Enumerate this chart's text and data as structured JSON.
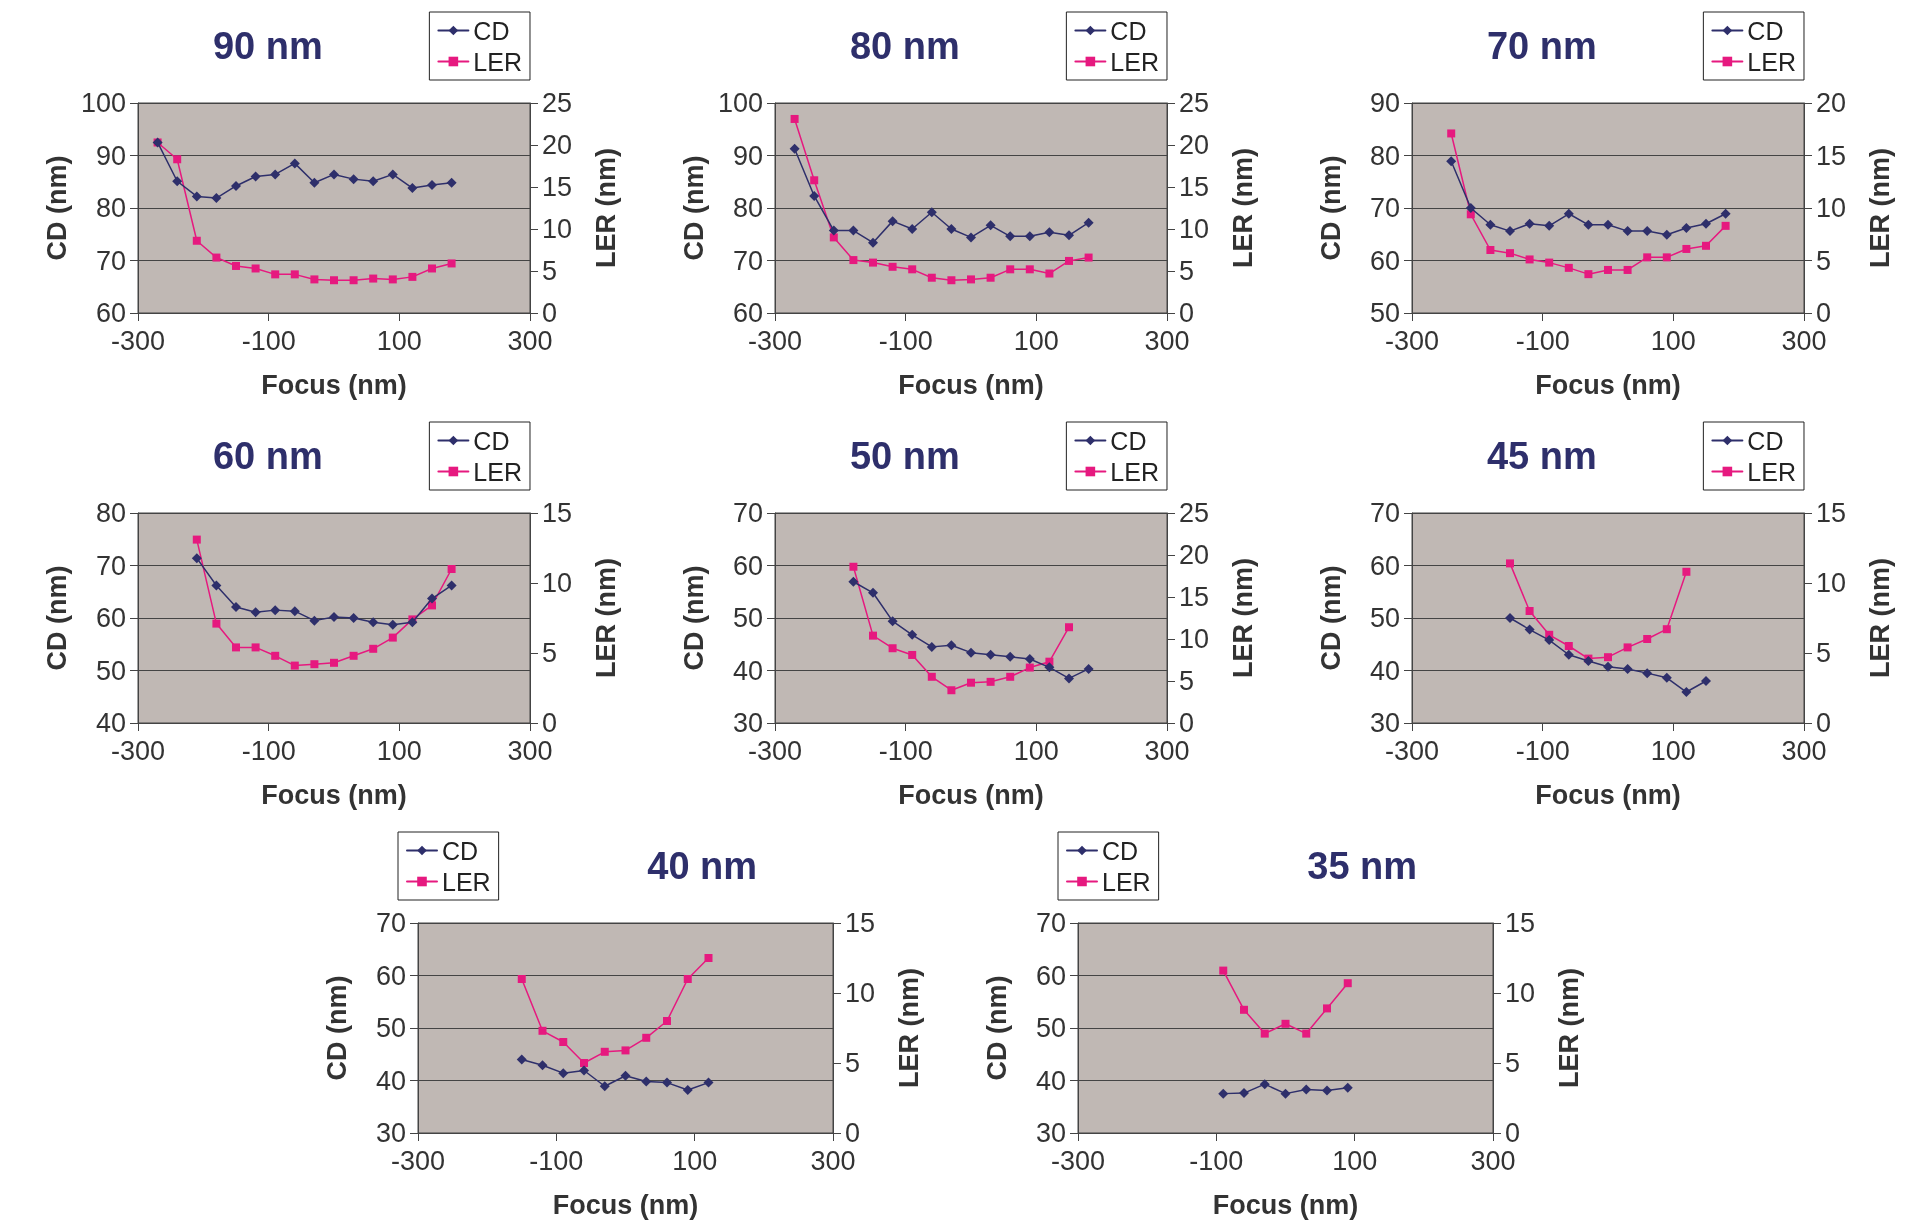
{
  "chart_data": [
    {
      "type": "line",
      "title": "90 nm",
      "xlabel": "Focus (nm)",
      "ylabel": "CD (nm)",
      "y2label": "LER (nm)",
      "x": [
        -270,
        -240,
        -210,
        -180,
        -150,
        -120,
        -90,
        -60,
        -30,
        0,
        30,
        60,
        90,
        120,
        150,
        180
      ],
      "xlim": [
        -300,
        300
      ],
      "xticks": [
        -300,
        -100,
        100,
        300
      ],
      "ylim": [
        60,
        100
      ],
      "yticks": [
        60,
        70,
        80,
        90,
        100
      ],
      "y2lim": [
        0,
        25
      ],
      "y2ticks": [
        0,
        5,
        10,
        15,
        20,
        25
      ],
      "grid": "y",
      "legend": "top right",
      "series": [
        {
          "name": "CD",
          "color": "#2e2f6b",
          "marker": "diamond",
          "values": [
            92.5,
            85.1,
            82.2,
            81.9,
            84.2,
            86.0,
            86.4,
            88.5,
            84.8,
            86.4,
            85.5,
            85.1,
            86.4,
            83.8,
            84.4,
            84.8
          ]
        },
        {
          "name": "LER",
          "color": "#e6197f",
          "marker": "square",
          "axis": "y2",
          "values": [
            20.3,
            18.3,
            8.6,
            6.6,
            5.6,
            5.3,
            4.6,
            4.6,
            4.0,
            3.9,
            3.9,
            4.1,
            4.0,
            4.3,
            5.3,
            5.9
          ]
        }
      ]
    },
    {
      "type": "line",
      "title": "80 nm",
      "xlabel": "Focus (nm)",
      "ylabel": "CD (nm)",
      "y2label": "LER (nm)",
      "x": [
        -270,
        -240,
        -210,
        -180,
        -150,
        -120,
        -90,
        -60,
        -30,
        0,
        30,
        60,
        90,
        120,
        150,
        180
      ],
      "xlim": [
        -300,
        300
      ],
      "xticks": [
        -300,
        -100,
        100,
        300
      ],
      "ylim": [
        60,
        100
      ],
      "yticks": [
        60,
        70,
        80,
        90,
        100
      ],
      "y2lim": [
        0,
        25
      ],
      "y2ticks": [
        0,
        5,
        10,
        15,
        20,
        25
      ],
      "grid": "y",
      "legend": "top right",
      "series": [
        {
          "name": "CD",
          "color": "#2e2f6b",
          "marker": "diamond",
          "values": [
            91.3,
            82.3,
            75.7,
            75.7,
            73.4,
            77.5,
            76.0,
            79.2,
            76.0,
            74.4,
            76.7,
            74.6,
            74.6,
            75.4,
            74.8,
            77.2
          ]
        },
        {
          "name": "LER",
          "color": "#e6197f",
          "marker": "square",
          "axis": "y2",
          "values": [
            23.1,
            15.8,
            9.0,
            6.3,
            6.0,
            5.5,
            5.2,
            4.2,
            3.9,
            4.0,
            4.2,
            5.2,
            5.2,
            4.7,
            6.2,
            6.6
          ]
        }
      ]
    },
    {
      "type": "line",
      "title": "70 nm",
      "xlabel": "Focus (nm)",
      "ylabel": "CD (nm)",
      "y2label": "LER (nm)",
      "x": [
        -240,
        -210,
        -180,
        -150,
        -120,
        -90,
        -60,
        -30,
        0,
        30,
        60,
        90,
        120,
        150,
        180
      ],
      "xlim": [
        -300,
        300
      ],
      "xticks": [
        -300,
        -100,
        100,
        300
      ],
      "ylim": [
        50,
        90
      ],
      "yticks": [
        50,
        60,
        70,
        80,
        90
      ],
      "y2lim": [
        0,
        20
      ],
      "y2ticks": [
        0,
        5,
        10,
        15,
        20
      ],
      "grid": "y",
      "legend": "top right",
      "series": [
        {
          "name": "CD",
          "color": "#2e2f6b",
          "marker": "diamond",
          "values": [
            78.9,
            70.0,
            66.8,
            65.6,
            67.0,
            66.6,
            68.9,
            66.8,
            66.8,
            65.6,
            65.6,
            64.9,
            66.2,
            67.0,
            68.9
          ]
        },
        {
          "name": "LER",
          "color": "#e6197f",
          "marker": "square",
          "axis": "y2",
          "values": [
            17.1,
            9.4,
            6.0,
            5.7,
            5.1,
            4.8,
            4.3,
            3.7,
            4.1,
            4.1,
            5.3,
            5.3,
            6.1,
            6.4,
            8.3
          ]
        }
      ]
    },
    {
      "type": "line",
      "title": "60 nm",
      "xlabel": "Focus (nm)",
      "ylabel": "CD (nm)",
      "y2label": "LER (nm)",
      "x": [
        -210,
        -180,
        -150,
        -120,
        -90,
        -60,
        -30,
        0,
        30,
        60,
        90,
        120,
        150,
        180
      ],
      "xlim": [
        -300,
        300
      ],
      "xticks": [
        -300,
        -100,
        100,
        300
      ],
      "ylim": [
        40,
        80
      ],
      "yticks": [
        40,
        50,
        60,
        70,
        80
      ],
      "y2lim": [
        0,
        15
      ],
      "y2ticks": [
        0,
        5,
        10,
        15
      ],
      "grid": "y",
      "legend": "top right",
      "series": [
        {
          "name": "CD",
          "color": "#2e2f6b",
          "marker": "diamond",
          "values": [
            71.4,
            66.2,
            62.1,
            61.1,
            61.5,
            61.3,
            59.5,
            60.2,
            60.0,
            59.2,
            58.7,
            59.2,
            63.7,
            66.2
          ]
        },
        {
          "name": "LER",
          "color": "#e6197f",
          "marker": "square",
          "axis": "y2",
          "values": [
            13.1,
            7.1,
            5.4,
            5.4,
            4.8,
            4.1,
            4.2,
            4.3,
            4.8,
            5.3,
            6.1,
            7.4,
            8.4,
            11.0
          ]
        }
      ]
    },
    {
      "type": "line",
      "title": "50 nm",
      "xlabel": "Focus (nm)",
      "ylabel": "CD (nm)",
      "y2label": "LER (nm)",
      "x": [
        -180,
        -150,
        -120,
        -90,
        -60,
        -30,
        0,
        30,
        60,
        90,
        120,
        150,
        180
      ],
      "xlim": [
        -300,
        300
      ],
      "xticks": [
        -300,
        -100,
        100,
        300
      ],
      "ylim": [
        30,
        70
      ],
      "yticks": [
        30,
        40,
        50,
        60,
        70
      ],
      "y2lim": [
        0,
        25
      ],
      "y2ticks": [
        0,
        5,
        10,
        15,
        20,
        25
      ],
      "grid": "y",
      "legend": "top right",
      "series": [
        {
          "name": "CD",
          "color": "#2e2f6b",
          "marker": "diamond",
          "values": [
            56.9,
            54.8,
            49.4,
            46.8,
            44.5,
            44.8,
            43.4,
            43.0,
            42.6,
            42.2,
            40.6,
            38.5,
            40.3
          ]
        },
        {
          "name": "LER",
          "color": "#e6197f",
          "marker": "square",
          "axis": "y2",
          "values": [
            18.6,
            10.4,
            8.9,
            8.1,
            5.5,
            3.9,
            4.8,
            4.9,
            5.5,
            6.6,
            7.3,
            11.4,
            null
          ]
        }
      ]
    },
    {
      "type": "line",
      "title": "45 nm",
      "xlabel": "Focus (nm)",
      "ylabel": "CD (nm)",
      "y2label": "LER (nm)",
      "x": [
        -150,
        -120,
        -90,
        -60,
        -30,
        0,
        30,
        60,
        90,
        120,
        150
      ],
      "xlim": [
        -300,
        300
      ],
      "xticks": [
        -300,
        -100,
        100,
        300
      ],
      "ylim": [
        30,
        70
      ],
      "yticks": [
        30,
        40,
        50,
        60,
        70
      ],
      "y2lim": [
        0,
        15
      ],
      "y2ticks": [
        0,
        5,
        10,
        15
      ],
      "grid": "y",
      "legend": "top right",
      "series": [
        {
          "name": "CD",
          "color": "#2e2f6b",
          "marker": "diamond",
          "values": [
            50.0,
            47.8,
            45.8,
            43.0,
            41.8,
            40.7,
            40.3,
            39.5,
            38.6,
            35.9,
            38.0
          ]
        },
        {
          "name": "LER",
          "color": "#e6197f",
          "marker": "square",
          "axis": "y2",
          "values": [
            11.4,
            8.0,
            6.3,
            5.5,
            4.6,
            4.7,
            5.4,
            6.0,
            6.7,
            10.8,
            null
          ]
        }
      ]
    },
    {
      "type": "line",
      "title": "40 nm",
      "xlabel": "Focus (nm)",
      "ylabel": "CD (nm)",
      "y2label": "LER (nm)",
      "x": [
        -150,
        -120,
        -90,
        -60,
        -30,
        0,
        30,
        60,
        90,
        120
      ],
      "xlim": [
        -300,
        300
      ],
      "xticks": [
        -300,
        -100,
        100,
        300
      ],
      "ylim": [
        30,
        70
      ],
      "yticks": [
        30,
        40,
        50,
        60,
        70
      ],
      "y2lim": [
        0,
        15
      ],
      "y2ticks": [
        0,
        5,
        10,
        15
      ],
      "grid": "y",
      "legend": "top left",
      "series": [
        {
          "name": "CD",
          "color": "#2e2f6b",
          "marker": "diamond",
          "values": [
            44.0,
            42.9,
            41.4,
            41.9,
            38.9,
            40.9,
            39.8,
            39.6,
            38.2,
            39.6
          ]
        },
        {
          "name": "LER",
          "color": "#e6197f",
          "marker": "square",
          "axis": "y2",
          "values": [
            11.0,
            7.3,
            6.5,
            5.0,
            5.8,
            5.9,
            6.8,
            8.0,
            11.0,
            12.5
          ]
        }
      ]
    },
    {
      "type": "line",
      "title": "35 nm",
      "xlabel": "Focus (nm)",
      "ylabel": "CD (nm)",
      "y2label": "LER (nm)",
      "x": [
        -90,
        -60,
        -30,
        0,
        30,
        60,
        90
      ],
      "xlim": [
        -300,
        300
      ],
      "xticks": [
        -300,
        -100,
        100,
        300
      ],
      "ylim": [
        30,
        70
      ],
      "yticks": [
        30,
        40,
        50,
        60,
        70
      ],
      "y2lim": [
        0,
        15
      ],
      "y2ticks": [
        0,
        5,
        10,
        15
      ],
      "grid": "y",
      "legend": "top left",
      "series": [
        {
          "name": "CD",
          "color": "#2e2f6b",
          "marker": "diamond",
          "values": [
            37.5,
            37.6,
            39.3,
            37.5,
            38.3,
            38.1,
            38.6
          ]
        },
        {
          "name": "LER",
          "color": "#e6197f",
          "marker": "square",
          "axis": "y2",
          "values": [
            11.6,
            8.8,
            7.1,
            7.8,
            7.1,
            8.9,
            10.7
          ]
        }
      ]
    }
  ]
}
